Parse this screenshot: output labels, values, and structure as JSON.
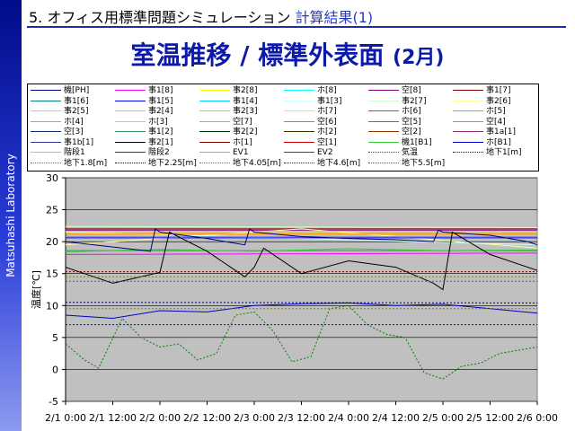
{
  "sidebar": {
    "text": "Matsuhashi Laboratory"
  },
  "header": {
    "number": "5.",
    "text1": "オフィス用標準問題シミュレーション",
    "text2": "計算結果(1)"
  },
  "title": {
    "main": "室温推移 / 標準外表面",
    "sub": "(2月)"
  },
  "chart_data": {
    "type": "line",
    "title": "",
    "xlabel": "",
    "ylabel": "温度[℃]",
    "ylim": [
      -5,
      30
    ],
    "yticks": [
      -5,
      0,
      5,
      10,
      15,
      20,
      25,
      30
    ],
    "xlim": [
      0,
      5
    ],
    "xtick_labels": [
      "2/1 0:00",
      "2/1 12:00",
      "2/2 0:00",
      "2/2 12:00",
      "2/3 0:00",
      "2/3 12:00",
      "2/4 0:00",
      "2/4 12:00",
      "2/5 0:00",
      "2/5 12:00",
      "2/6 0:00"
    ],
    "grid": "horizontal",
    "legend_position": "top",
    "legend_entries": [
      {
        "name": "機[PH]",
        "color": "#000080",
        "dash": "solid"
      },
      {
        "name": "事1[8]",
        "color": "#ff00ff",
        "dash": "solid"
      },
      {
        "name": "事2[8]",
        "color": "#ffff00",
        "dash": "solid"
      },
      {
        "name": "ホ[8]",
        "color": "#00ffff",
        "dash": "solid"
      },
      {
        "name": "空[8]",
        "color": "#800080",
        "dash": "solid"
      },
      {
        "name": "事1[7]",
        "color": "#800000",
        "dash": "solid"
      },
      {
        "name": "事1[6]",
        "color": "#008080",
        "dash": "solid"
      },
      {
        "name": "事1[5]",
        "color": "#0000ff",
        "dash": "solid"
      },
      {
        "name": "事1[4]",
        "color": "#00ccff",
        "dash": "solid"
      },
      {
        "name": "事1[3]",
        "color": "#ccffff",
        "dash": "solid"
      },
      {
        "name": "事2[7]",
        "color": "#ccffcc",
        "dash": "solid"
      },
      {
        "name": "事2[6]",
        "color": "#ffff99",
        "dash": "solid"
      },
      {
        "name": "事2[5]",
        "color": "#99ccff",
        "dash": "solid"
      },
      {
        "name": "事2[4]",
        "color": "#ff99cc",
        "dash": "solid"
      },
      {
        "name": "事2[3]",
        "color": "#cc99ff",
        "dash": "solid"
      },
      {
        "name": "ホ[7]",
        "color": "#ffcc99",
        "dash": "solid"
      },
      {
        "name": "ホ[6]",
        "color": "#3366ff",
        "dash": "solid"
      },
      {
        "name": "ホ[5]",
        "color": "#33cccc",
        "dash": "solid"
      },
      {
        "name": "ホ[4]",
        "color": "#99cc00",
        "dash": "solid"
      },
      {
        "name": "ホ[3]",
        "color": "#ffcc00",
        "dash": "solid"
      },
      {
        "name": "空[7]",
        "color": "#ff9900",
        "dash": "solid"
      },
      {
        "name": "空[6]",
        "color": "#ff6600",
        "dash": "solid"
      },
      {
        "name": "空[5]",
        "color": "#666699",
        "dash": "solid"
      },
      {
        "name": "空[4]",
        "color": "#969696",
        "dash": "solid"
      },
      {
        "name": "空[3]",
        "color": "#003366",
        "dash": "solid"
      },
      {
        "name": "事1[2]",
        "color": "#339966",
        "dash": "solid"
      },
      {
        "name": "事2[2]",
        "color": "#003300",
        "dash": "solid"
      },
      {
        "name": "ホ[2]",
        "color": "#333300",
        "dash": "solid"
      },
      {
        "name": "空[2]",
        "color": "#993300",
        "dash": "solid"
      },
      {
        "name": "事1a[1]",
        "color": "#993366",
        "dash": "solid"
      },
      {
        "name": "事1b[1]",
        "color": "#333399",
        "dash": "solid"
      },
      {
        "name": "事2[1]",
        "color": "#000000",
        "dash": "solid"
      },
      {
        "name": "ホ[1]",
        "color": "#800000",
        "dash": "solid"
      },
      {
        "name": "空[1]",
        "color": "#cc0000",
        "dash": "solid"
      },
      {
        "name": "機1[B1]",
        "color": "#33cc33",
        "dash": "solid"
      },
      {
        "name": "ホ[B1]",
        "color": "#0000cc",
        "dash": "solid"
      },
      {
        "name": "階段1",
        "color": "#ff9999",
        "dash": "solid"
      },
      {
        "name": "階段2",
        "color": "#cc0000",
        "dash": "solid"
      },
      {
        "name": "EV1",
        "color": "#9999ff",
        "dash": "solid"
      },
      {
        "name": "EV2",
        "color": "#cc0066",
        "dash": "solid"
      },
      {
        "name": "気温",
        "color": "#008000",
        "dash": "dotted"
      },
      {
        "name": "地下1[m]",
        "color": "#0000ff",
        "dash": "dotted"
      },
      {
        "name": "地下1.8[m]",
        "color": "#808000",
        "dash": "dotted"
      },
      {
        "name": "地下2.25[m]",
        "color": "#000080",
        "dash": "dotted"
      },
      {
        "name": "地下4.05[m]",
        "color": "#808000",
        "dash": "dotted"
      },
      {
        "name": "地下4.6[m]",
        "color": "#800000",
        "dash": "dotted"
      },
      {
        "name": "地下5.5[m]",
        "color": "#008080",
        "dash": "dotted"
      }
    ],
    "series": [
      {
        "name": "事1[8]",
        "color": "#ff00ff",
        "x": [
          0,
          5
        ],
        "values": [
          18.0,
          18.2
        ]
      },
      {
        "name": "空[8]",
        "color": "#800080",
        "x": [
          0,
          5
        ],
        "values": [
          21.8,
          21.8
        ]
      },
      {
        "name": "事1[7]",
        "color": "#800000",
        "x": [
          0,
          5
        ],
        "values": [
          22.0,
          22.0
        ]
      },
      {
        "name": "事2[7]",
        "color": "#ccffcc",
        "x": [
          0,
          5
        ],
        "values": [
          22.4,
          22.2
        ]
      },
      {
        "name": "事2[6]",
        "color": "#ffff99",
        "x": [
          0,
          2.5,
          5
        ],
        "values": [
          19.5,
          22.0,
          19.0
        ]
      },
      {
        "name": "事1[3]",
        "color": "#ccffff",
        "x": [
          0,
          2.5,
          5
        ],
        "values": [
          21.5,
          20.5,
          19.5
        ]
      },
      {
        "name": "ホ[3]",
        "color": "#ffcc00",
        "x": [
          0,
          5
        ],
        "values": [
          21.6,
          21.6
        ]
      },
      {
        "name": "空[7]",
        "color": "#ff9900",
        "x": [
          0,
          5
        ],
        "values": [
          21.2,
          21.2
        ]
      },
      {
        "name": "事1[4]",
        "color": "#00ccff",
        "x": [
          0,
          5
        ],
        "values": [
          20.8,
          20.8
        ]
      },
      {
        "name": "事1[5]",
        "color": "#0000ff",
        "x": [
          0,
          5
        ],
        "values": [
          20.6,
          20.6
        ]
      },
      {
        "name": "事1[2]",
        "color": "#339966",
        "x": [
          0,
          5
        ],
        "values": [
          18.6,
          18.6
        ]
      },
      {
        "name": "機1[B1]",
        "color": "#33cc33",
        "x": [
          0,
          1,
          2,
          3,
          4,
          5
        ],
        "values": [
          18.4,
          18.8,
          18.5,
          18.9,
          18.6,
          18.7
        ]
      },
      {
        "name": "事2[1]",
        "color": "#000000",
        "x": [
          0,
          0.1,
          0.5,
          1,
          1.1,
          1.5,
          1.9,
          2,
          2.1,
          2.5,
          3,
          3.5,
          3.9,
          4,
          4.1,
          4.5,
          5
        ],
        "values": [
          16.0,
          15.5,
          13.5,
          15.2,
          21.5,
          18.5,
          14.5,
          16.0,
          19.0,
          15.0,
          17.0,
          16.0,
          13.5,
          12.5,
          21.5,
          18.0,
          15.5
        ]
      },
      {
        "name": "ホ[B1]",
        "color": "#0000cc",
        "x": [
          0,
          0.5,
          1,
          1.5,
          2,
          2.5,
          3,
          3.5,
          4,
          4.5,
          5
        ],
        "values": [
          8.5,
          8.0,
          9.2,
          9.0,
          10.0,
          10.3,
          10.4,
          10.0,
          10.2,
          9.5,
          8.8
        ]
      },
      {
        "name": "機[PH]",
        "color": "#000080",
        "x": [
          0,
          0.9,
          0.95,
          1,
          1.5,
          1.9,
          1.95,
          2,
          2.5,
          3,
          3.5,
          3.9,
          3.95,
          4,
          4.5,
          4.9,
          5
        ],
        "values": [
          20.0,
          18.5,
          22.0,
          21.5,
          20.5,
          19.5,
          22.0,
          21.5,
          20.8,
          20.5,
          20.3,
          20.0,
          21.8,
          21.5,
          21.0,
          20.0,
          19.5
        ]
      },
      {
        "name": "気温",
        "color": "#008000",
        "x": [
          0,
          0.2,
          0.35,
          0.6,
          0.8,
          1,
          1.2,
          1.4,
          1.6,
          1.8,
          2,
          2.2,
          2.4,
          2.6,
          2.8,
          3,
          3.2,
          3.4,
          3.6,
          3.8,
          4,
          4.2,
          4.4,
          4.6,
          4.8,
          5
        ],
        "values": [
          4.0,
          1.5,
          0.2,
          8.0,
          5.0,
          3.5,
          4.0,
          1.5,
          2.5,
          8.5,
          9.0,
          6.0,
          1.2,
          2.0,
          9.5,
          10.0,
          7.0,
          5.5,
          5.0,
          -0.5,
          -1.5,
          0.5,
          1.0,
          2.5,
          3.0,
          3.5
        ]
      },
      {
        "name": "地下1[m]",
        "color": "#0000ff",
        "x": [
          0,
          5
        ],
        "values": [
          7.0,
          7.0
        ]
      },
      {
        "name": "地下1.8[m]",
        "color": "#808000",
        "x": [
          0,
          5
        ],
        "values": [
          9.5,
          9.5
        ]
      },
      {
        "name": "地下2.25[m]",
        "color": "#000080",
        "x": [
          0,
          5
        ],
        "values": [
          10.5,
          10.4
        ]
      },
      {
        "name": "地下4.05[m]",
        "color": "#808000",
        "x": [
          0,
          5
        ],
        "values": [
          14.5,
          14.5
        ]
      },
      {
        "name": "地下4.6[m]",
        "color": "#800000",
        "x": [
          0,
          5
        ],
        "values": [
          15.3,
          15.3
        ]
      },
      {
        "name": "地下5.5[m]",
        "color": "#008080",
        "x": [
          0,
          5
        ],
        "values": [
          13.8,
          13.8
        ]
      }
    ]
  }
}
